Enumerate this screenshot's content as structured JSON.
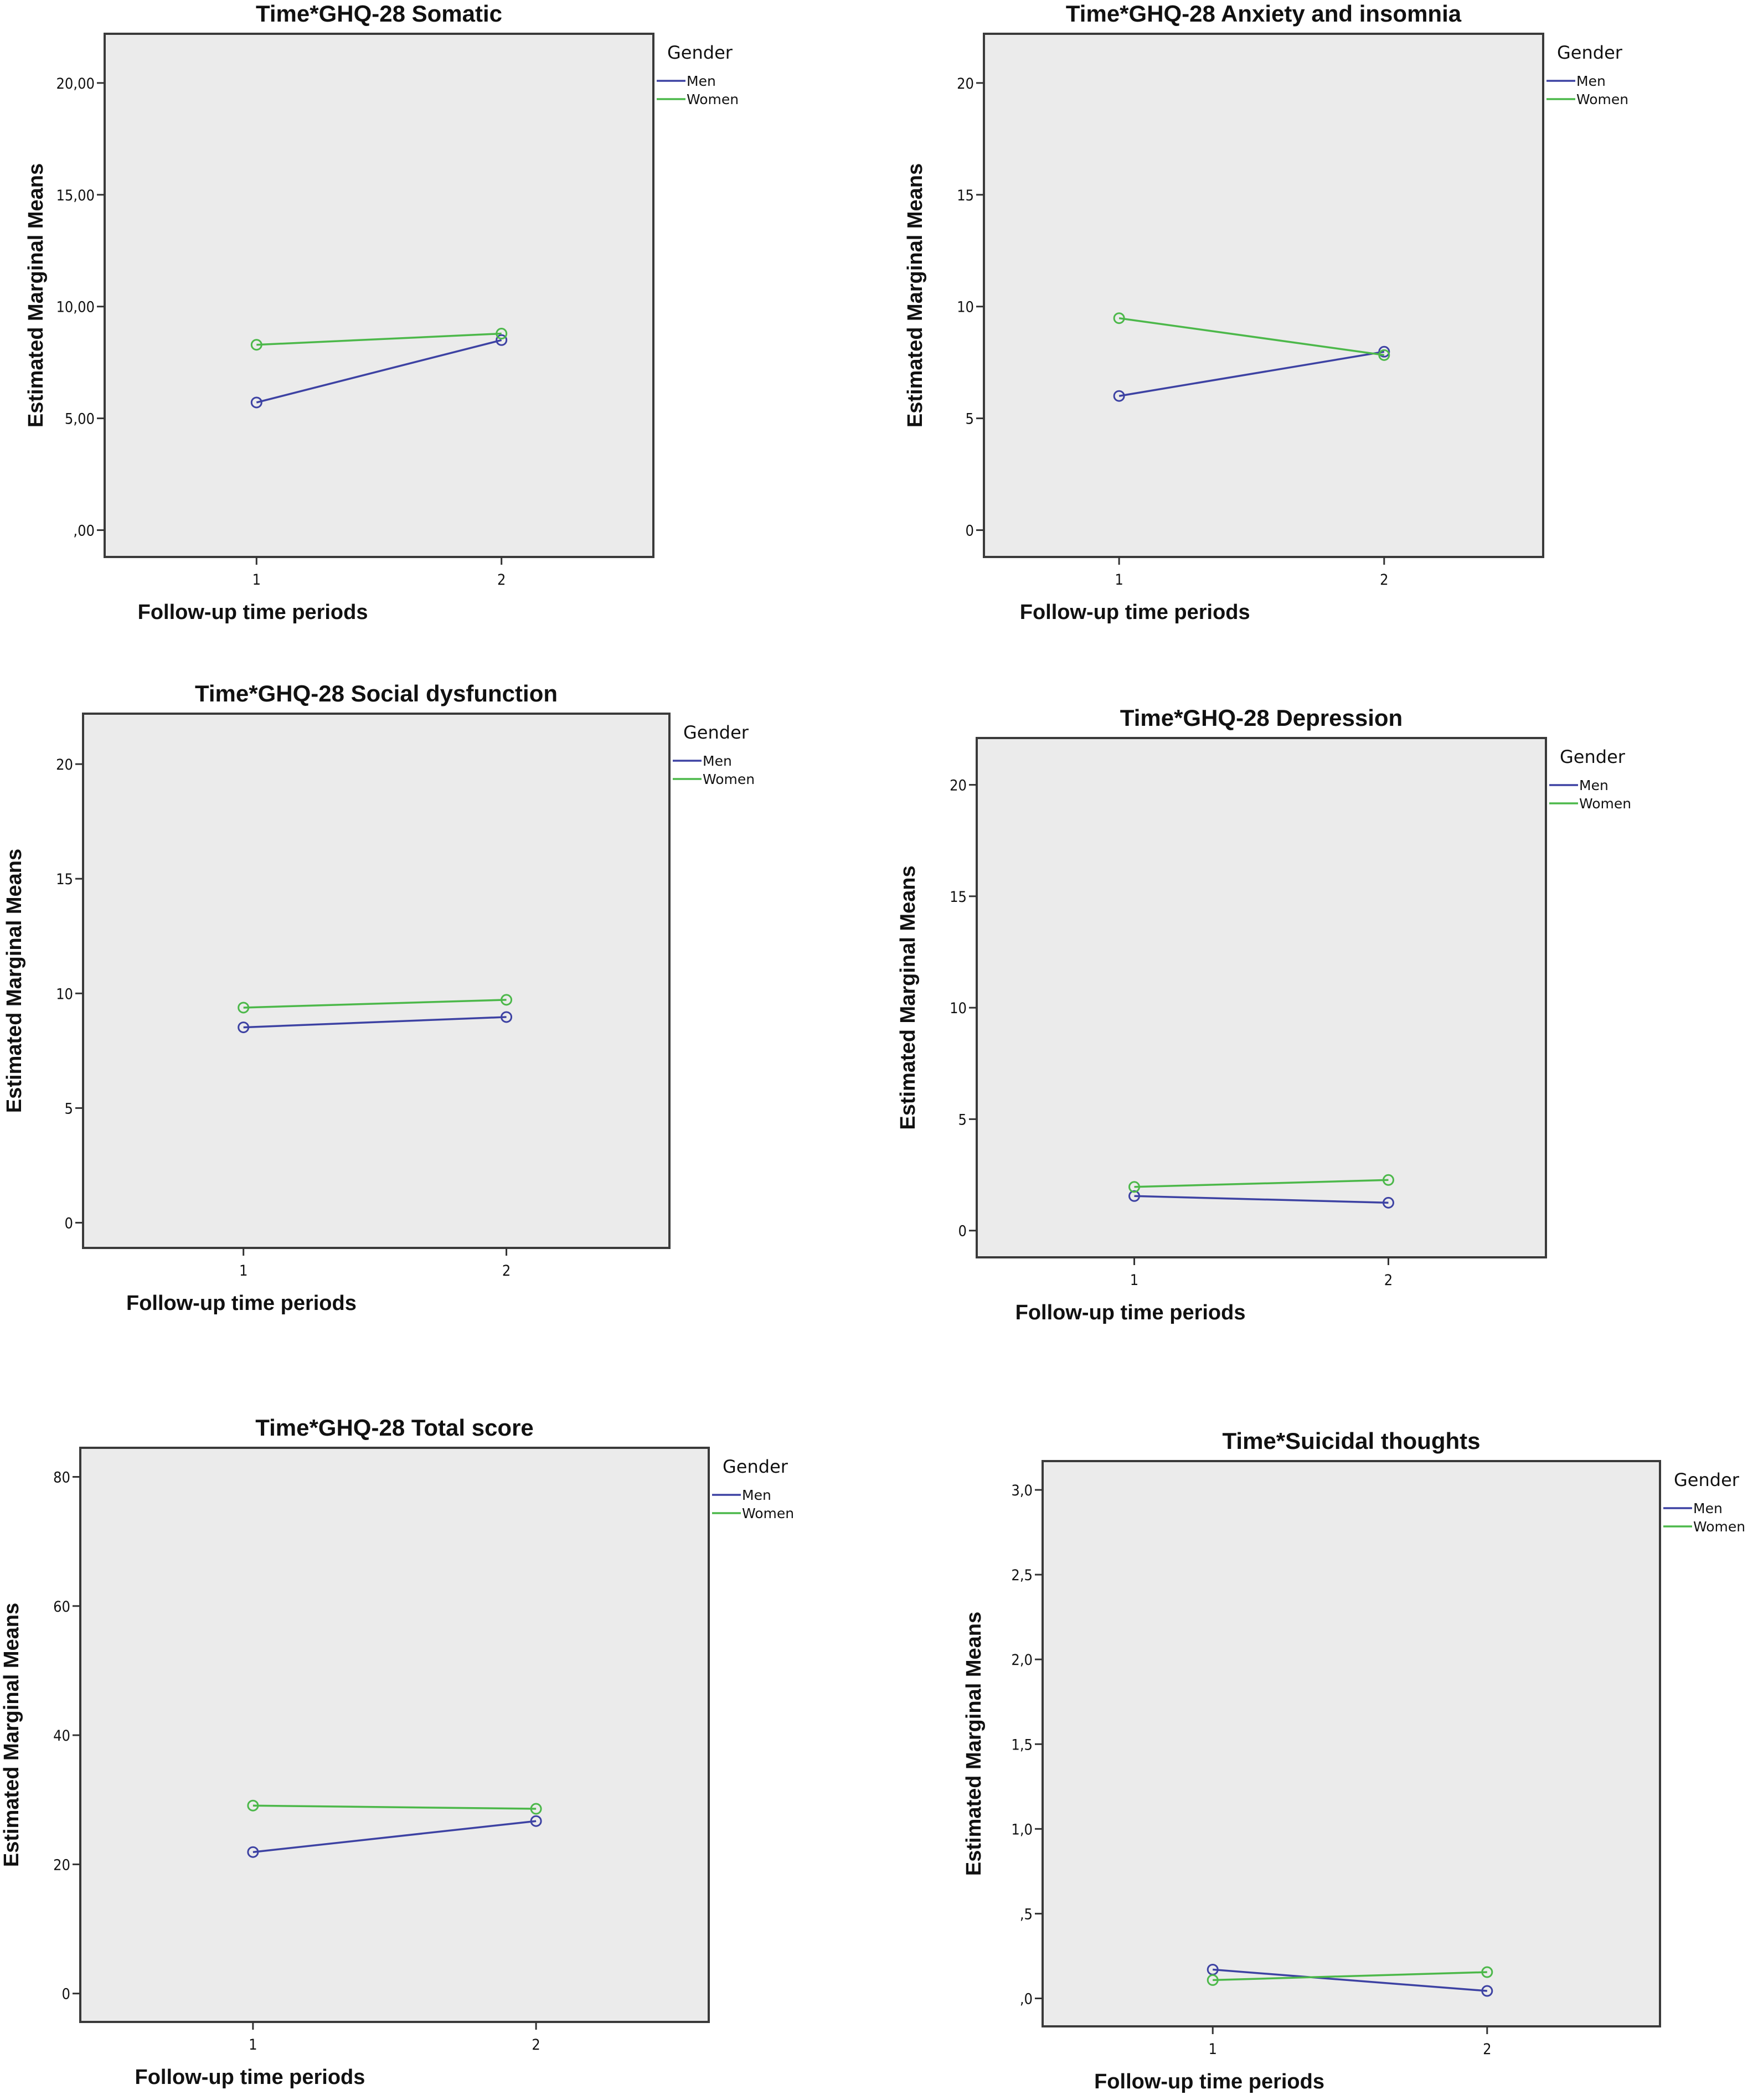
{
  "chart_data": [
    {
      "type": "line",
      "title": "Time*GHQ-28 Somatic",
      "xlabel": "Follow-up time periods",
      "ylabel": "Estimated Marginal Means",
      "x": [
        1,
        2
      ],
      "xtick_labels": [
        "1",
        "2"
      ],
      "xlim": [
        0.38,
        2.62
      ],
      "ylim": [
        -1.2,
        22.2
      ],
      "yticks": [
        0,
        5,
        10,
        15,
        20
      ],
      "ytick_labels": [
        ",00",
        "5,00",
        "10,00",
        "15,00",
        "20,00"
      ],
      "grid": false,
      "legend": {
        "title": "Gender",
        "placement": "right"
      },
      "series": [
        {
          "name": "Men",
          "color": "#3d42a3",
          "values": [
            5.71,
            8.5
          ]
        },
        {
          "name": "Women",
          "color": "#4cb84a",
          "values": [
            8.29,
            8.79
          ]
        }
      ]
    },
    {
      "type": "line",
      "title": "Time*GHQ-28 Anxiety and insomnia",
      "xlabel": "Follow-up time periods",
      "ylabel": "Estimated Marginal Means",
      "x": [
        1,
        2
      ],
      "xtick_labels": [
        "1",
        "2"
      ],
      "xlim": [
        0.49,
        2.6
      ],
      "ylim": [
        -1.2,
        22.2
      ],
      "yticks": [
        0,
        5,
        10,
        15,
        20
      ],
      "ytick_labels": [
        "0",
        "5",
        "10",
        "15",
        "20"
      ],
      "grid": false,
      "legend": {
        "title": "Gender",
        "placement": "right"
      },
      "series": [
        {
          "name": "Men",
          "color": "#3d42a3",
          "values": [
            6.0,
            7.98
          ]
        },
        {
          "name": "Women",
          "color": "#4cb84a",
          "values": [
            9.48,
            7.83
          ]
        }
      ]
    },
    {
      "type": "line",
      "title": "Time*GHQ-28 Social dysfunction",
      "xlabel": "Follow-up time periods",
      "ylabel": "Estimated Marginal Means",
      "x": [
        1,
        2
      ],
      "xtick_labels": [
        "1",
        "2"
      ],
      "xlim": [
        0.39,
        2.62
      ],
      "ylim": [
        -1.1,
        22.2
      ],
      "yticks": [
        0,
        5,
        10,
        15,
        20
      ],
      "ytick_labels": [
        "0",
        "5",
        "10",
        "15",
        "20"
      ],
      "grid": false,
      "legend": {
        "title": "Gender",
        "placement": "right"
      },
      "series": [
        {
          "name": "Men",
          "color": "#3d42a3",
          "values": [
            8.52,
            8.97
          ]
        },
        {
          "name": "Women",
          "color": "#4cb84a",
          "values": [
            9.38,
            9.72
          ]
        }
      ]
    },
    {
      "type": "line",
      "title": "Time*GHQ-28 Depression",
      "xlabel": "Follow-up time periods",
      "ylabel": "Estimated Marginal Means",
      "x": [
        1,
        2
      ],
      "xtick_labels": [
        "1",
        "2"
      ],
      "xlim": [
        0.38,
        2.62
      ],
      "ylim": [
        -1.2,
        22.1
      ],
      "yticks": [
        0,
        5,
        10,
        15,
        20
      ],
      "ytick_labels": [
        "0",
        "5",
        "10",
        "15",
        "20"
      ],
      "grid": false,
      "legend": {
        "title": "Gender",
        "placement": "right"
      },
      "series": [
        {
          "name": "Men",
          "color": "#3d42a3",
          "values": [
            1.55,
            1.25
          ]
        },
        {
          "name": "Women",
          "color": "#4cb84a",
          "values": [
            1.96,
            2.27
          ]
        }
      ]
    },
    {
      "type": "line",
      "title": "Time*GHQ-28 Total score",
      "xlabel": "Follow-up time periods",
      "ylabel": "Estimated Marginal Means",
      "x": [
        1,
        2
      ],
      "xtick_labels": [
        "1",
        "2"
      ],
      "xlim": [
        0.39,
        2.61
      ],
      "ylim": [
        -4.4,
        84.5
      ],
      "yticks": [
        0,
        20,
        40,
        60,
        80
      ],
      "ytick_labels": [
        "0",
        "20",
        "40",
        "60",
        "80"
      ],
      "grid": false,
      "legend": {
        "title": "Gender",
        "placement": "right"
      },
      "series": [
        {
          "name": "Men",
          "color": "#3d42a3",
          "values": [
            21.9,
            26.7
          ]
        },
        {
          "name": "Women",
          "color": "#4cb84a",
          "values": [
            29.1,
            28.6
          ]
        }
      ]
    },
    {
      "type": "line",
      "title": "Time*Suicidal thoughts",
      "xlabel": "Follow-up time periods",
      "ylabel": "Estimated Marginal Means",
      "x": [
        1,
        2
      ],
      "xtick_labels": [
        "1",
        "2"
      ],
      "xlim": [
        0.38,
        2.63
      ],
      "ylim": [
        -0.165,
        3.17
      ],
      "yticks": [
        0,
        0.5,
        1.0,
        1.5,
        2.0,
        2.5,
        3.0
      ],
      "ytick_labels": [
        ",0",
        ",5",
        "1,0",
        "1,5",
        "2,0",
        "2,5",
        "3,0"
      ],
      "grid": false,
      "legend": {
        "title": "Gender",
        "placement": "right"
      },
      "series": [
        {
          "name": "Men",
          "color": "#3d42a3",
          "values": [
            0.17,
            0.044
          ]
        },
        {
          "name": "Women",
          "color": "#4cb84a",
          "values": [
            0.108,
            0.155
          ]
        }
      ]
    }
  ]
}
